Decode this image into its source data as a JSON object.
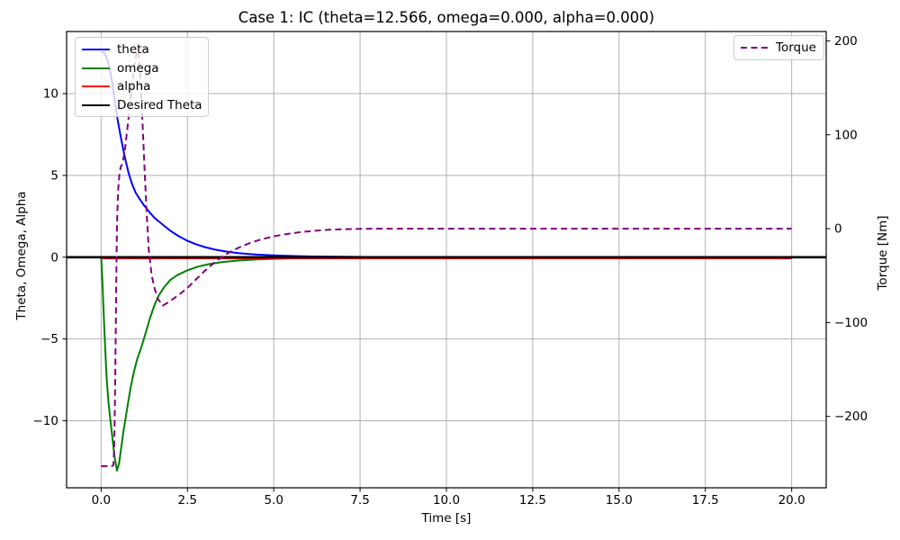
{
  "chart_data": {
    "type": "line",
    "title": "Case 1: IC (theta=12.566, omega=0.000, alpha=0.000)",
    "grid": true,
    "background": "#ffffff",
    "grid_color": "#b0b0b0",
    "spine_color": "#000000",
    "xlim": [
      -1,
      21
    ],
    "ylim_left": [
      -14.1,
      13.8
    ],
    "ylim_right": [
      -276,
      210
    ],
    "axes": {
      "x": {
        "label": "Time [s]",
        "tick_values": [
          0,
          2.5,
          5,
          7.5,
          10,
          12.5,
          15,
          17.5,
          20
        ],
        "tick_labels": [
          "0.0",
          "2.5",
          "5.0",
          "7.5",
          "10.0",
          "12.5",
          "15.0",
          "17.5",
          "20.0"
        ]
      },
      "y_left": {
        "label": "Theta, Omega, Alpha",
        "tick_values": [
          10,
          5,
          0,
          -5,
          -10
        ],
        "tick_labels": [
          "10",
          "5",
          "0",
          "−5",
          "−10"
        ]
      },
      "y_right": {
        "label": "Torque [Nm]",
        "tick_values": [
          200,
          100,
          0,
          -100,
          -200
        ],
        "tick_labels": [
          "200",
          "100",
          "0",
          "−100",
          "−200"
        ]
      }
    },
    "legend_left": {
      "position": "upper left",
      "items": [
        {
          "label": "theta",
          "color": "#0000ff",
          "style": "solid"
        },
        {
          "label": "omega",
          "color": "#008000",
          "style": "solid"
        },
        {
          "label": "alpha",
          "color": "#ff0000",
          "style": "solid"
        },
        {
          "label": "Desired Theta",
          "color": "#000000",
          "style": "solid"
        }
      ]
    },
    "legend_right": {
      "position": "upper right",
      "items": [
        {
          "label": "Torque",
          "color": "#800080",
          "style": "dashed"
        }
      ]
    },
    "series": [
      {
        "name": "theta",
        "axis": "left",
        "color": "#0000ff",
        "style": "solid",
        "width": 2,
        "points": [
          [
            0,
            12.57
          ],
          [
            0.08,
            12.52
          ],
          [
            0.16,
            12.2
          ],
          [
            0.24,
            11.6
          ],
          [
            0.32,
            10.7
          ],
          [
            0.4,
            9.5
          ],
          [
            0.47,
            8.5
          ],
          [
            0.55,
            7.55
          ],
          [
            0.63,
            6.7
          ],
          [
            0.71,
            5.9
          ],
          [
            0.8,
            5.1
          ],
          [
            0.9,
            4.45
          ],
          [
            1.0,
            3.95
          ],
          [
            1.12,
            3.55
          ],
          [
            1.25,
            3.15
          ],
          [
            1.4,
            2.75
          ],
          [
            1.55,
            2.4
          ],
          [
            1.75,
            2.05
          ],
          [
            2.0,
            1.62
          ],
          [
            2.25,
            1.28
          ],
          [
            2.5,
            1.0
          ],
          [
            2.75,
            0.79
          ],
          [
            3.0,
            0.62
          ],
          [
            3.3,
            0.46
          ],
          [
            3.6,
            0.35
          ],
          [
            4.0,
            0.24
          ],
          [
            4.5,
            0.16
          ],
          [
            5.0,
            0.11
          ],
          [
            5.5,
            0.075
          ],
          [
            6.0,
            0.05
          ],
          [
            6.5,
            0.035
          ],
          [
            7.0,
            0.024
          ],
          [
            8.0,
            0.012
          ],
          [
            9.0,
            0.006
          ],
          [
            10.0,
            0.003
          ],
          [
            12.0,
            0.001
          ],
          [
            15.0,
            0
          ],
          [
            20.0,
            0
          ]
        ]
      },
      {
        "name": "omega",
        "axis": "left",
        "color": "#008000",
        "style": "solid",
        "width": 2,
        "points": [
          [
            0,
            0
          ],
          [
            0.04,
            -1.6
          ],
          [
            0.08,
            -3.7
          ],
          [
            0.12,
            -5.7
          ],
          [
            0.16,
            -7.4
          ],
          [
            0.21,
            -8.8
          ],
          [
            0.26,
            -9.8
          ],
          [
            0.32,
            -10.9
          ],
          [
            0.39,
            -12.2
          ],
          [
            0.46,
            -13.05
          ],
          [
            0.52,
            -12.6
          ],
          [
            0.58,
            -11.7
          ],
          [
            0.65,
            -10.6
          ],
          [
            0.72,
            -9.7
          ],
          [
            0.78,
            -8.9
          ],
          [
            0.86,
            -7.9
          ],
          [
            0.95,
            -7.0
          ],
          [
            1.05,
            -6.2
          ],
          [
            1.15,
            -5.6
          ],
          [
            1.28,
            -4.7
          ],
          [
            1.42,
            -3.7
          ],
          [
            1.55,
            -2.9
          ],
          [
            1.68,
            -2.3
          ],
          [
            1.82,
            -1.85
          ],
          [
            2.0,
            -1.4
          ],
          [
            2.2,
            -1.1
          ],
          [
            2.5,
            -0.8
          ],
          [
            2.8,
            -0.58
          ],
          [
            3.1,
            -0.43
          ],
          [
            3.5,
            -0.3
          ],
          [
            4.0,
            -0.2
          ],
          [
            4.5,
            -0.14
          ],
          [
            5.0,
            -0.1
          ],
          [
            5.5,
            -0.07
          ],
          [
            6.0,
            -0.045
          ],
          [
            7.0,
            -0.02
          ],
          [
            8.0,
            -0.008
          ],
          [
            10.0,
            -0.002
          ],
          [
            12.0,
            0
          ],
          [
            15.0,
            0
          ],
          [
            20.0,
            0
          ]
        ]
      },
      {
        "name": "alpha",
        "axis": "left",
        "color": "#ff0000",
        "style": "solid",
        "width": 1.8,
        "points": [
          [
            0,
            0
          ],
          [
            2,
            0
          ],
          [
            5,
            0
          ],
          [
            8,
            0
          ],
          [
            12,
            0
          ],
          [
            16,
            0
          ],
          [
            20,
            0
          ]
        ]
      },
      {
        "name": "desired_theta",
        "axis": "left",
        "color": "#000000",
        "style": "solid",
        "width": 2.6,
        "points": [
          [
            -1,
            0
          ],
          [
            21,
            0
          ]
        ]
      },
      {
        "name": "torque",
        "axis": "right",
        "color": "#800080",
        "style": "dashed",
        "width": 2,
        "points": [
          [
            0,
            -253
          ],
          [
            0.15,
            -253
          ],
          [
            0.3,
            -253
          ],
          [
            0.355,
            -252
          ],
          [
            0.38,
            -235
          ],
          [
            0.4,
            -185
          ],
          [
            0.42,
            -120
          ],
          [
            0.44,
            -55
          ],
          [
            0.46,
            5
          ],
          [
            0.49,
            40
          ],
          [
            0.53,
            58
          ],
          [
            0.57,
            66
          ],
          [
            0.62,
            69
          ],
          [
            0.68,
            82
          ],
          [
            0.75,
            103
          ],
          [
            0.82,
            126
          ],
          [
            0.89,
            150
          ],
          [
            0.96,
            172
          ],
          [
            1.02,
            186
          ],
          [
            1.06,
            190
          ],
          [
            1.1,
            180
          ],
          [
            1.15,
            152
          ],
          [
            1.2,
            112
          ],
          [
            1.26,
            62
          ],
          [
            1.32,
            16
          ],
          [
            1.38,
            -22
          ],
          [
            1.46,
            -49
          ],
          [
            1.55,
            -64
          ],
          [
            1.65,
            -75
          ],
          [
            1.78,
            -82
          ],
          [
            1.92,
            -79
          ],
          [
            2.1,
            -74.5
          ],
          [
            2.3,
            -69
          ],
          [
            2.5,
            -63
          ],
          [
            2.75,
            -54
          ],
          [
            3.0,
            -45
          ],
          [
            3.25,
            -37
          ],
          [
            3.5,
            -30
          ],
          [
            3.75,
            -24.5
          ],
          [
            4.0,
            -20
          ],
          [
            4.3,
            -15.5
          ],
          [
            4.6,
            -11.8
          ],
          [
            5.0,
            -8.2
          ],
          [
            5.4,
            -5.6
          ],
          [
            5.8,
            -3.6
          ],
          [
            6.2,
            -2.2
          ],
          [
            6.6,
            -1.2
          ],
          [
            7.0,
            -0.6
          ],
          [
            7.5,
            -0.2
          ],
          [
            8.0,
            -0.05
          ],
          [
            9.0,
            0
          ],
          [
            10.0,
            0
          ],
          [
            12.0,
            0
          ],
          [
            15.0,
            0
          ],
          [
            18.0,
            0
          ],
          [
            20.0,
            0
          ]
        ]
      }
    ]
  }
}
